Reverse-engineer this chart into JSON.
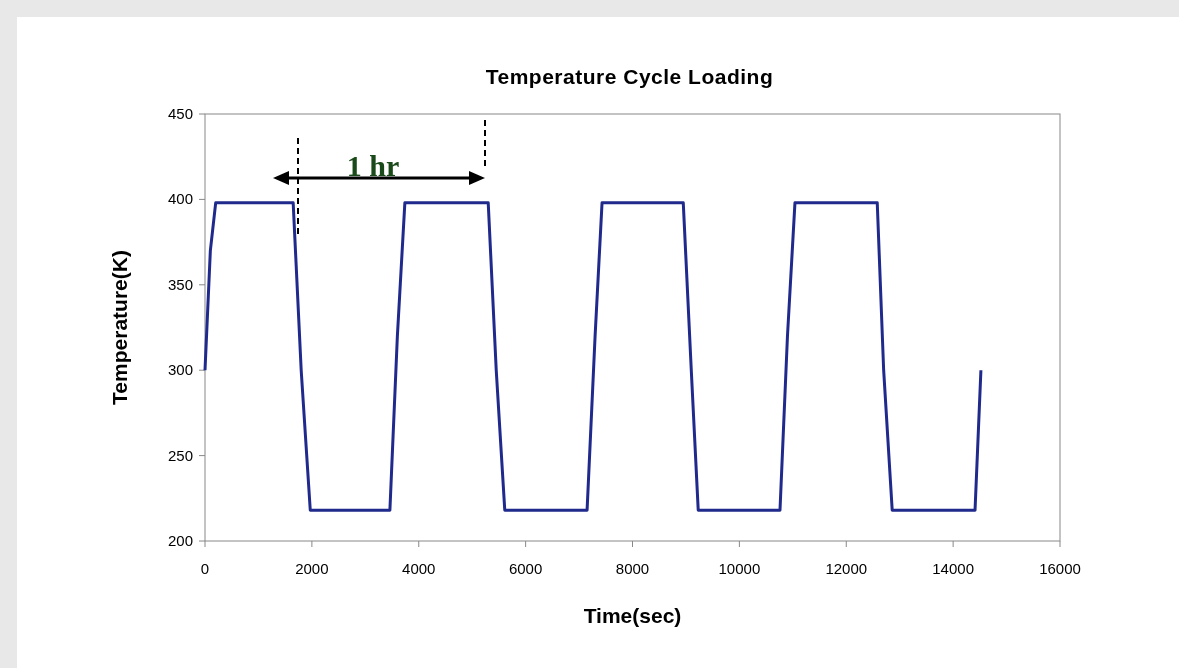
{
  "chart_data": {
    "type": "line",
    "title": "Temperature Cycle Loading",
    "xlabel": "Time(sec)",
    "ylabel": "Temperature(K)",
    "xlim": [
      0,
      16000
    ],
    "xticks": [
      0,
      2000,
      4000,
      6000,
      8000,
      10000,
      12000,
      14000,
      16000
    ],
    "ylim": [
      200,
      450
    ],
    "yticks": [
      200,
      250,
      300,
      350,
      400,
      450
    ],
    "x": [
      0,
      100,
      200,
      1650,
      1800,
      1970,
      3460,
      3600,
      3740,
      5300,
      5450,
      5610,
      7150,
      7300,
      7430,
      8950,
      9100,
      9230,
      10760,
      10900,
      11040,
      12580,
      12700,
      12860,
      14410,
      14520
    ],
    "series": [
      {
        "color": "#1f2a8c",
        "values": [
          300,
          370,
          398,
          398,
          300,
          218,
          218,
          320,
          398,
          398,
          300,
          218,
          218,
          320,
          398,
          398,
          300,
          218,
          218,
          320,
          398,
          398,
          300,
          218,
          218,
          300
        ]
      }
    ],
    "annotations": [
      "1 hr"
    ],
    "grid": false,
    "marker": "none",
    "line_style": "solid"
  }
}
